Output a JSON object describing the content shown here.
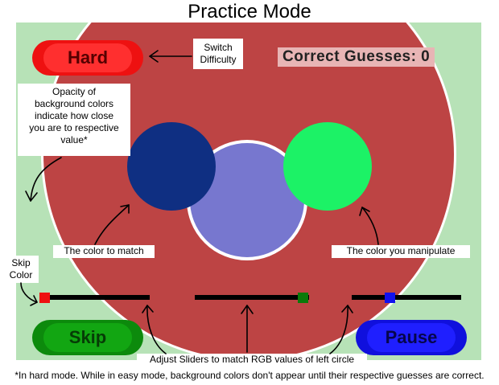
{
  "header": {
    "title": "Practice Mode"
  },
  "buttons": {
    "difficulty": "Hard",
    "skip": "Skip",
    "pause": "Pause"
  },
  "score": {
    "text": "Correct Guesses: 0"
  },
  "callouts": {
    "switch_difficulty": [
      "Switch",
      "Difficulty"
    ],
    "opacity": [
      "Opacity of",
      "background colors",
      "indicate how close",
      "you are to respective",
      "value*"
    ],
    "skip_color": [
      "Skip",
      "Color"
    ],
    "color_to_match": "The color to match",
    "color_you_manipulate": "The color you manipulate",
    "adjust_sliders": "Adjust Sliders to match RGB values of left circle"
  },
  "footnote": "*In hard mode. While in easy mode, background colors don't appear until their respective guesses are correct.",
  "colors": {
    "target_circle": "#0f2f82",
    "manipulated_circle": "#1cf266",
    "center_circle": "#7777cf",
    "background_outer": "#b7e2b7",
    "background_ring": "#bd4444",
    "slider_red": "#ee1111",
    "slider_green": "#0a7a0a",
    "slider_blue": "#1111ee"
  },
  "sliders": [
    {
      "channel": "red",
      "value": 0.0
    },
    {
      "channel": "green",
      "value": 1.0
    },
    {
      "channel": "blue",
      "value": 0.35
    }
  ]
}
